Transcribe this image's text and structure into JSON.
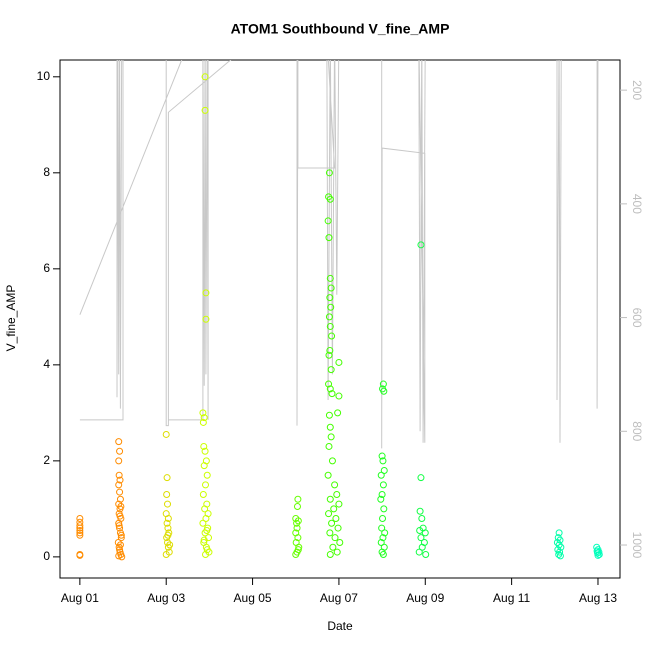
{
  "chart_data": {
    "type": "scatter",
    "title": "ATOM1 Southbound V_fine_AMP",
    "x_label": "Date",
    "y_label": "V_fine_AMP",
    "xlim": [
      0.54,
      13.51
    ],
    "ylim": [
      -0.44,
      10.35
    ],
    "y2lim": [
      1058,
      147
    ],
    "xticks": [
      {
        "value": 1,
        "label": "Aug 01"
      },
      {
        "value": 3,
        "label": "Aug 03"
      },
      {
        "value": 5,
        "label": "Aug 05"
      },
      {
        "value": 7,
        "label": "Aug 07"
      },
      {
        "value": 9,
        "label": "Aug 09"
      },
      {
        "value": 11,
        "label": "Aug 11"
      },
      {
        "value": 13,
        "label": "Aug 13"
      }
    ],
    "yticks": [
      0,
      2,
      4,
      6,
      8,
      10
    ],
    "y2ticks": [
      200,
      400,
      600,
      800,
      1000
    ],
    "y2_color": "#bebebe",
    "series": [
      {
        "type": "line",
        "axis": "y2",
        "color": "#c8c8c8",
        "x": [
          1.0,
          2.0,
          2.0,
          1.86,
          1.86,
          1.88,
          1.9,
          1.92,
          1.94,
          1.97,
          null,
          1.0,
          3.5,
          null,
          3.0,
          3.0,
          3.05,
          3.05,
          4.6,
          null,
          3.05,
          3.85,
          3.85,
          3.88,
          3.9,
          3.92,
          3.95,
          3.97,
          3.97,
          6.03,
          6.03,
          6.05,
          6.05,
          6.9,
          6.72,
          6.75,
          6.8,
          6.85,
          6.9,
          6.95,
          7.0,
          7.99,
          7.99,
          8.0,
          8.99,
          8.99,
          8.85,
          8.88,
          8.92,
          8.95,
          9.0,
          12.05,
          12.05,
          12.1,
          12.12,
          12.15,
          12.98,
          12.98,
          13.0
        ],
        "values": [
          780,
          780,
          100,
          100,
          740,
          100,
          700,
          100,
          760,
          100,
          null,
          595,
          120,
          null,
          100,
          790,
          790,
          239,
          140,
          null,
          780,
          780,
          100,
          720,
          100,
          700,
          100,
          780,
          100,
          100,
          790,
          100,
          337,
          337,
          100,
          745,
          100,
          700,
          100,
          560,
          100,
          100,
          830,
          302,
          311,
          820,
          100,
          800,
          100,
          820,
          100,
          100,
          745,
          100,
          820,
          100,
          100,
          760,
          100
        ]
      },
      {
        "type": "scatter",
        "color": "#ff8c00",
        "x": [
          1,
          1,
          1,
          1,
          1,
          1,
          1,
          1,
          1,
          1.9,
          1.92,
          1.9,
          1.91,
          1.93,
          1.9,
          1.92,
          1.94,
          1.9,
          1.93,
          1.91,
          1.95,
          1.9,
          1.92,
          1.94,
          1.96,
          1.89,
          1.91,
          1.93,
          1.95,
          1.97,
          1.9,
          1.92,
          1.94,
          1.96,
          1.91,
          1.93,
          1.95
        ],
        "values": [
          0.8,
          0.72,
          0.65,
          0.6,
          0.55,
          0.5,
          0.45,
          0.05,
          0.03,
          2.4,
          2.2,
          2.0,
          1.7,
          1.6,
          1.5,
          1.35,
          1.2,
          1.1,
          1.0,
          0.9,
          0.8,
          0.7,
          0.6,
          0.5,
          0.4,
          0.3,
          0.2,
          0.1,
          0.05,
          0,
          0.02,
          0.15,
          0.25,
          0.45,
          0.65,
          0.85,
          1.05
        ]
      },
      {
        "type": "scatter",
        "color": "#dddd00",
        "x": [
          3.0,
          3.02,
          3.01,
          3.03,
          3.0,
          3.05,
          3.02,
          3.04,
          3.06,
          3.01,
          3.03,
          3.05,
          3.07,
          3.0,
          3.04,
          3.08
        ],
        "values": [
          2.55,
          1.65,
          1.3,
          1.1,
          0.9,
          0.8,
          0.7,
          0.6,
          0.5,
          0.4,
          0.3,
          0.2,
          0.1,
          0.05,
          0.45,
          0.25
        ]
      },
      {
        "type": "scatter",
        "color": "#ccff00",
        "x": [
          3.9,
          3.9,
          3.92,
          3.92,
          3.85,
          3.88,
          3.86,
          3.87,
          3.9,
          3.93,
          3.88,
          3.95,
          3.91,
          3.86,
          3.94,
          3.89,
          3.97,
          3.92,
          3.85,
          3.96,
          3.9,
          3.98,
          3.87,
          3.93,
          3.99,
          3.91,
          3.95,
          3.88,
          3.94
        ],
        "values": [
          10.0,
          9.3,
          5.5,
          4.95,
          3.0,
          2.9,
          2.8,
          2.3,
          2.2,
          2.0,
          1.9,
          1.7,
          1.5,
          1.3,
          1.1,
          1.0,
          0.9,
          0.8,
          0.7,
          0.6,
          0.5,
          0.4,
          0.3,
          0.2,
          0.1,
          0.05,
          0.15,
          0.35,
          0.55
        ]
      },
      {
        "type": "scatter",
        "color": "#66ff00",
        "x": [
          6.05,
          6.04,
          6.0,
          6.06,
          6.02,
          6.03,
          6.0,
          6.05,
          6.01,
          6.07,
          6.03,
          6.0,
          6.06
        ],
        "values": [
          1.2,
          1.05,
          0.8,
          0.75,
          0.7,
          0.6,
          0.5,
          0.4,
          0.3,
          0.2,
          0.1,
          0.05,
          0.15
        ]
      },
      {
        "type": "scatter",
        "color": "#44ff00",
        "x": [
          6.78,
          6.76,
          6.8,
          6.75,
          6.77,
          6.8,
          6.82,
          6.79,
          6.81,
          6.78,
          6.8,
          6.83,
          6.79,
          6.77,
          7.0,
          6.82,
          6.76,
          6.8,
          6.84,
          7.0,
          6.97,
          6.78,
          6.8,
          6.82,
          6.77,
          6.85,
          6.75,
          6.9,
          6.95,
          6.8,
          7.0,
          6.88,
          6.76,
          6.93,
          6.83,
          6.98,
          6.79,
          6.91,
          7.02,
          6.86,
          6.96,
          6.8
        ],
        "values": [
          8.0,
          7.5,
          7.45,
          7.0,
          6.65,
          5.8,
          5.6,
          5.4,
          5.2,
          5.0,
          4.8,
          4.6,
          4.3,
          4.2,
          4.05,
          3.9,
          3.6,
          3.5,
          3.4,
          3.35,
          3.0,
          2.95,
          2.7,
          2.5,
          2.3,
          2.0,
          1.7,
          1.5,
          1.3,
          1.2,
          1.1,
          1.0,
          0.9,
          0.8,
          0.7,
          0.6,
          0.5,
          0.4,
          0.3,
          0.2,
          0.1,
          0.05
        ]
      },
      {
        "type": "scatter",
        "color": "#22ff22",
        "x": [
          8.03,
          8.01,
          8.04,
          8.0,
          8.02,
          8.05,
          7.98,
          8.03,
          8.0,
          7.97,
          8.04,
          8.01,
          7.99,
          8.06,
          8.02,
          7.98,
          8.05,
          8.0,
          8.03
        ],
        "values": [
          3.6,
          3.5,
          3.45,
          2.1,
          2.0,
          1.8,
          1.7,
          1.5,
          1.3,
          1.2,
          1.0,
          0.8,
          0.6,
          0.5,
          0.4,
          0.3,
          0.2,
          0.1,
          0.05
        ]
      },
      {
        "type": "scatter",
        "color": "#11ff44",
        "x": [
          8.9,
          8.9,
          8.88,
          8.92,
          8.95,
          8.87,
          9.0,
          8.9,
          8.98,
          8.93,
          8.86,
          9.01
        ],
        "values": [
          6.5,
          1.65,
          0.95,
          0.8,
          0.6,
          0.55,
          0.5,
          0.4,
          0.3,
          0.2,
          0.1,
          0.05
        ]
      },
      {
        "type": "scatter",
        "color": "#00ffaa",
        "x": [
          12.1,
          12.08,
          12.12,
          12.06,
          12.1,
          12.14,
          12.07,
          12.11,
          12.09,
          12.13
        ],
        "values": [
          0.5,
          0.4,
          0.35,
          0.3,
          0.25,
          0.2,
          0.15,
          0.1,
          0.05,
          0.02
        ]
      },
      {
        "type": "scatter",
        "color": "#00ffbb",
        "x": [
          12.97,
          13.0,
          12.98,
          13.02,
          12.99,
          13.03,
          13.0
        ],
        "values": [
          0.2,
          0.15,
          0.12,
          0.1,
          0.08,
          0.05,
          0.03
        ]
      }
    ]
  }
}
